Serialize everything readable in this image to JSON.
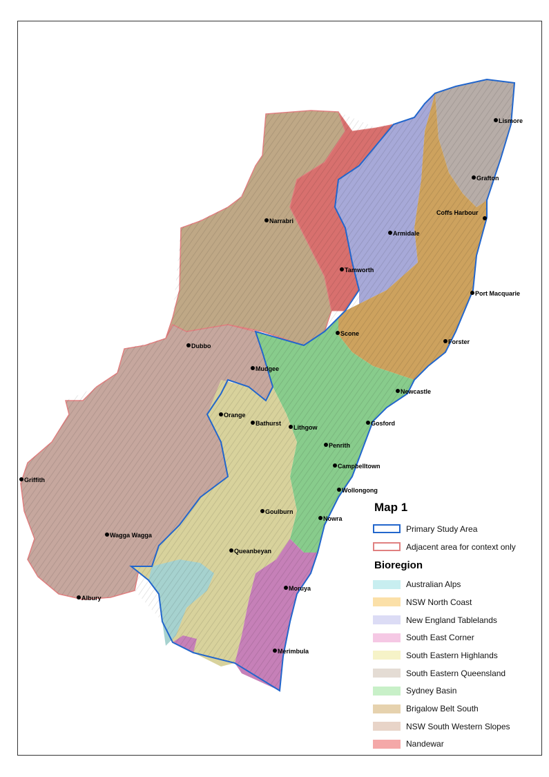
{
  "map": {
    "title": "Map 1",
    "bioregion_heading": "Bioregion",
    "boundaries": [
      {
        "label": "Primary Study Area",
        "color": "#2266cc"
      },
      {
        "label": "Adjacent area for context only",
        "color": "#e08080"
      }
    ],
    "bioregions": [
      {
        "label": "Australian Alps",
        "color": "#c8eef0"
      },
      {
        "label": "NSW North Coast",
        "color": "#fbe0a8"
      },
      {
        "label": "New England Tablelands",
        "color": "#dcdcf5"
      },
      {
        "label": "South East Corner",
        "color": "#f5c8e4"
      },
      {
        "label": "South Eastern Highlands",
        "color": "#f6f3c8"
      },
      {
        "label": "South Eastern Queensland",
        "color": "#e4dcd4"
      },
      {
        "label": "Sydney Basin",
        "color": "#c8f0c8"
      },
      {
        "label": "Brigalow Belt South",
        "color": "#e6d2ae"
      },
      {
        "label": "NSW South Western Slopes",
        "color": "#e8d4c8"
      },
      {
        "label": "Nandewar",
        "color": "#f4a8a8"
      }
    ],
    "towns": [
      "Lismore",
      "Grafton",
      "Coffs Harbour",
      "Armidale",
      "Narrabri",
      "Tamworth",
      "Port Macquarie",
      "Scone",
      "Forster",
      "Dubbo",
      "Mudgee",
      "Newcastle",
      "Orange",
      "Bathurst",
      "Lithgow",
      "Gosford",
      "Penrith",
      "Campbelltown",
      "Griffith",
      "Wollongong",
      "Goulburn",
      "Nowra",
      "Wagga Wagga",
      "Queanbeyan",
      "Moruya",
      "Albury",
      "Merimbula"
    ]
  }
}
